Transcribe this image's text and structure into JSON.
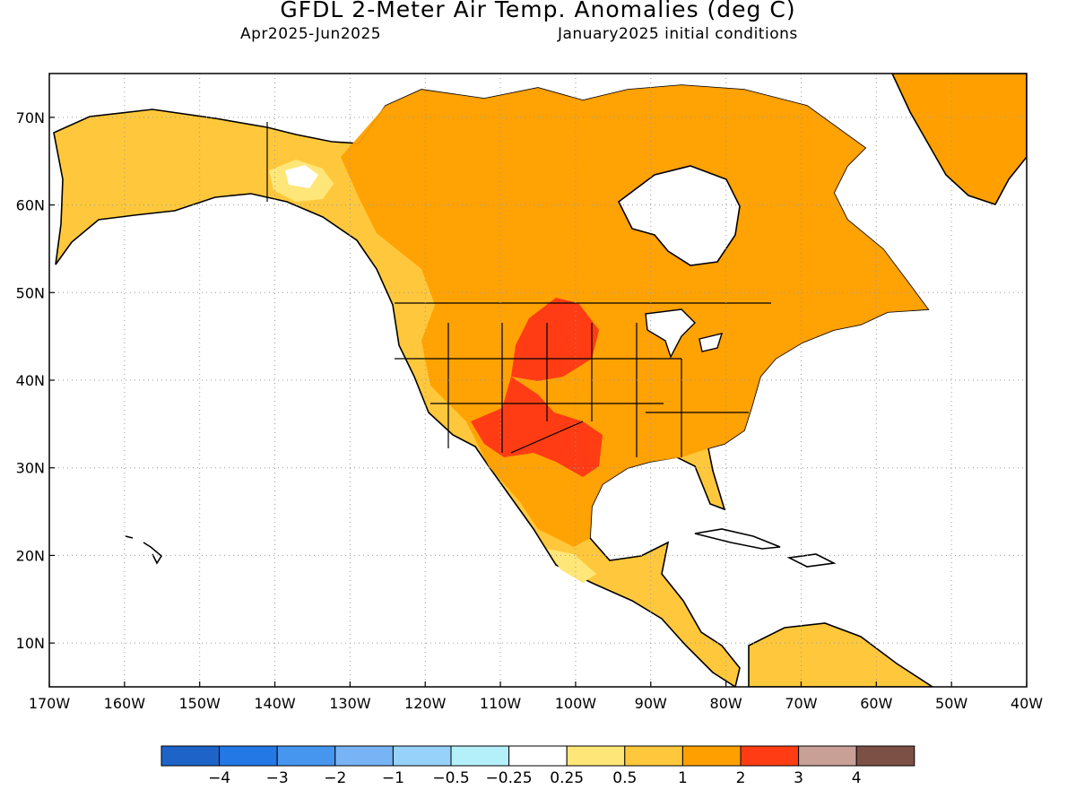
{
  "header": {
    "title": "GFDL 2-Meter Air Temp. Anomalies (deg C)",
    "period": "Apr2025-Jun2025",
    "init": "January2025 initial conditions"
  },
  "axes": {
    "lat_labels": [
      "70N",
      "60N",
      "50N",
      "40N",
      "30N",
      "20N",
      "10N"
    ],
    "lon_labels": [
      "170W",
      "160W",
      "150W",
      "140W",
      "130W",
      "120W",
      "110W",
      "100W",
      "90W",
      "80W",
      "70W",
      "60W",
      "50W",
      "40W"
    ],
    "lon_range": [
      -170,
      -40
    ],
    "lat_range": [
      5,
      75
    ]
  },
  "legend": {
    "labels": [
      "-4",
      "-3",
      "-2",
      "-1",
      "-0.5",
      "-0.25",
      "0.25",
      "0.5",
      "1",
      "2",
      "3",
      "4"
    ],
    "colors": [
      "#1e64c8",
      "#2378e6",
      "#4696f0",
      "#78b4f5",
      "#96d2fa",
      "#b4f0fa",
      "#ffffff",
      "#ffe678",
      "#ffc83c",
      "#ffa000",
      "#ff3c14",
      "#c8a096",
      "#7d5046"
    ]
  },
  "colors": {
    "anomaly_0_5_1": "#ffc83c",
    "anomaly_1_2": "#ffa000",
    "anomaly_2_3": "#ff3c14",
    "anomaly_0_25_0_5": "#ffe678"
  }
}
